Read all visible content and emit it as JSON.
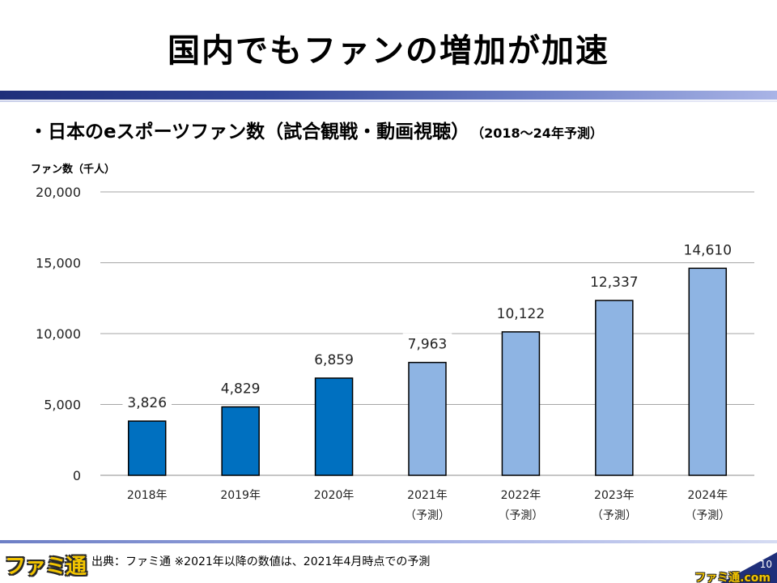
{
  "title": "国内でもファンの増加が加速",
  "subtitle": "・日本のeスポーツファン数（試合観戦・動画視聴）",
  "subtitle_note": "（2018〜24年予測）",
  "footer": {
    "logo_text": "ファミ通",
    "source": "出典：ファミ通 ※2021年以降の数値は、2021年4月時点での予測",
    "page_number": "10",
    "watermark": "ファミ通.com"
  },
  "colors": {
    "actual_bar": "#0070c0",
    "forecast_bar": "#8eb4e3",
    "header_rule": "#1f2f7a"
  },
  "chart_data": {
    "type": "bar",
    "ylabel": "ファン数（千人）",
    "categories": [
      "2018年",
      "2019年",
      "2020年",
      "2021年",
      "2022年",
      "2023年",
      "2024年"
    ],
    "category_notes": [
      "",
      "",
      "",
      "（予測）",
      "（予測）",
      "（予測）",
      "（予測）"
    ],
    "values": [
      3826,
      4829,
      6859,
      7963,
      10122,
      12337,
      14610
    ],
    "value_labels": [
      "3,826",
      "4,829",
      "6,859",
      "7,963",
      "10,122",
      "12,337",
      "14,610"
    ],
    "forecast": [
      false,
      false,
      false,
      true,
      true,
      true,
      true
    ],
    "ylim": [
      0,
      20000
    ],
    "yticks": [
      0,
      5000,
      10000,
      15000,
      20000
    ],
    "ytick_labels": [
      "0",
      "5,000",
      "10,000",
      "15,000",
      "20,000"
    ],
    "grid": true,
    "legend": "none"
  }
}
